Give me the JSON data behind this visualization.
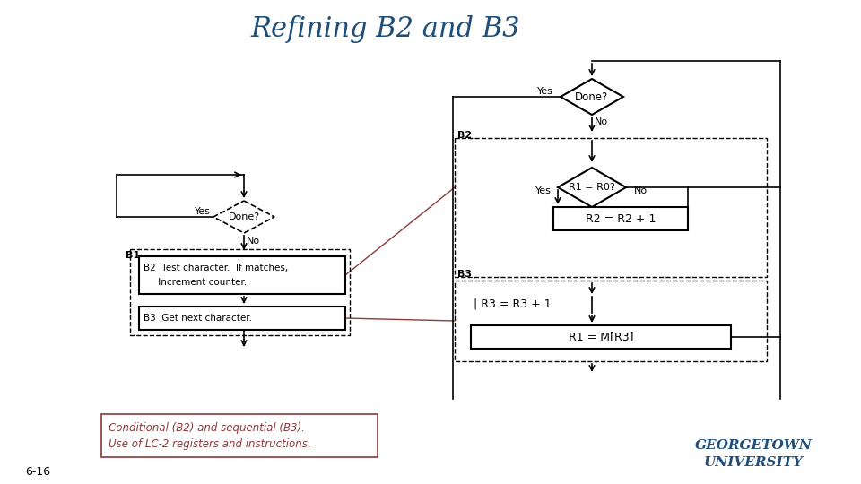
{
  "title": "Refining B2 and B3",
  "title_color": "#1f4e79",
  "title_fontsize": 22,
  "title_style": "italic",
  "bg_color": "#ffffff",
  "slide_num": "6-16",
  "caption_line1": "Conditional (B2) and sequential (B3).",
  "caption_line2": "Use of LC-2 registers and instructions.",
  "caption_color": "#8B3A3A",
  "georgetown_color": "#1f4e79"
}
